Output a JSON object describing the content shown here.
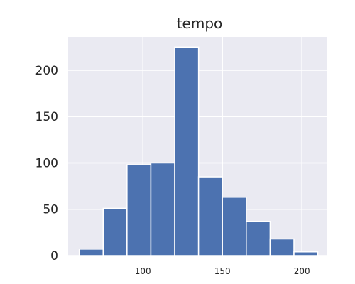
{
  "chart_data": {
    "type": "bar",
    "title": "tempo",
    "xlabel": "",
    "ylabel": "",
    "bins": [
      {
        "start": 60,
        "end": 75,
        "count": 7
      },
      {
        "start": 75,
        "end": 90,
        "count": 51
      },
      {
        "start": 90,
        "end": 105,
        "count": 98
      },
      {
        "start": 105,
        "end": 120,
        "count": 100
      },
      {
        "start": 120,
        "end": 135,
        "count": 225
      },
      {
        "start": 135,
        "end": 150,
        "count": 85
      },
      {
        "start": 150,
        "end": 165,
        "count": 63
      },
      {
        "start": 165,
        "end": 180,
        "count": 37
      },
      {
        "start": 180,
        "end": 195,
        "count": 18
      },
      {
        "start": 195,
        "end": 210,
        "count": 4
      }
    ],
    "xlim": [
      53,
      216
    ],
    "ylim": [
      0,
      236
    ],
    "x_ticks": [
      100,
      150,
      200
    ],
    "y_ticks": [
      0,
      50,
      100,
      150,
      200
    ],
    "grid": true,
    "legend": "none",
    "bar_color": "#4c72b0",
    "plot_background": "#eaeaf2",
    "grid_color": "#ffffff"
  }
}
